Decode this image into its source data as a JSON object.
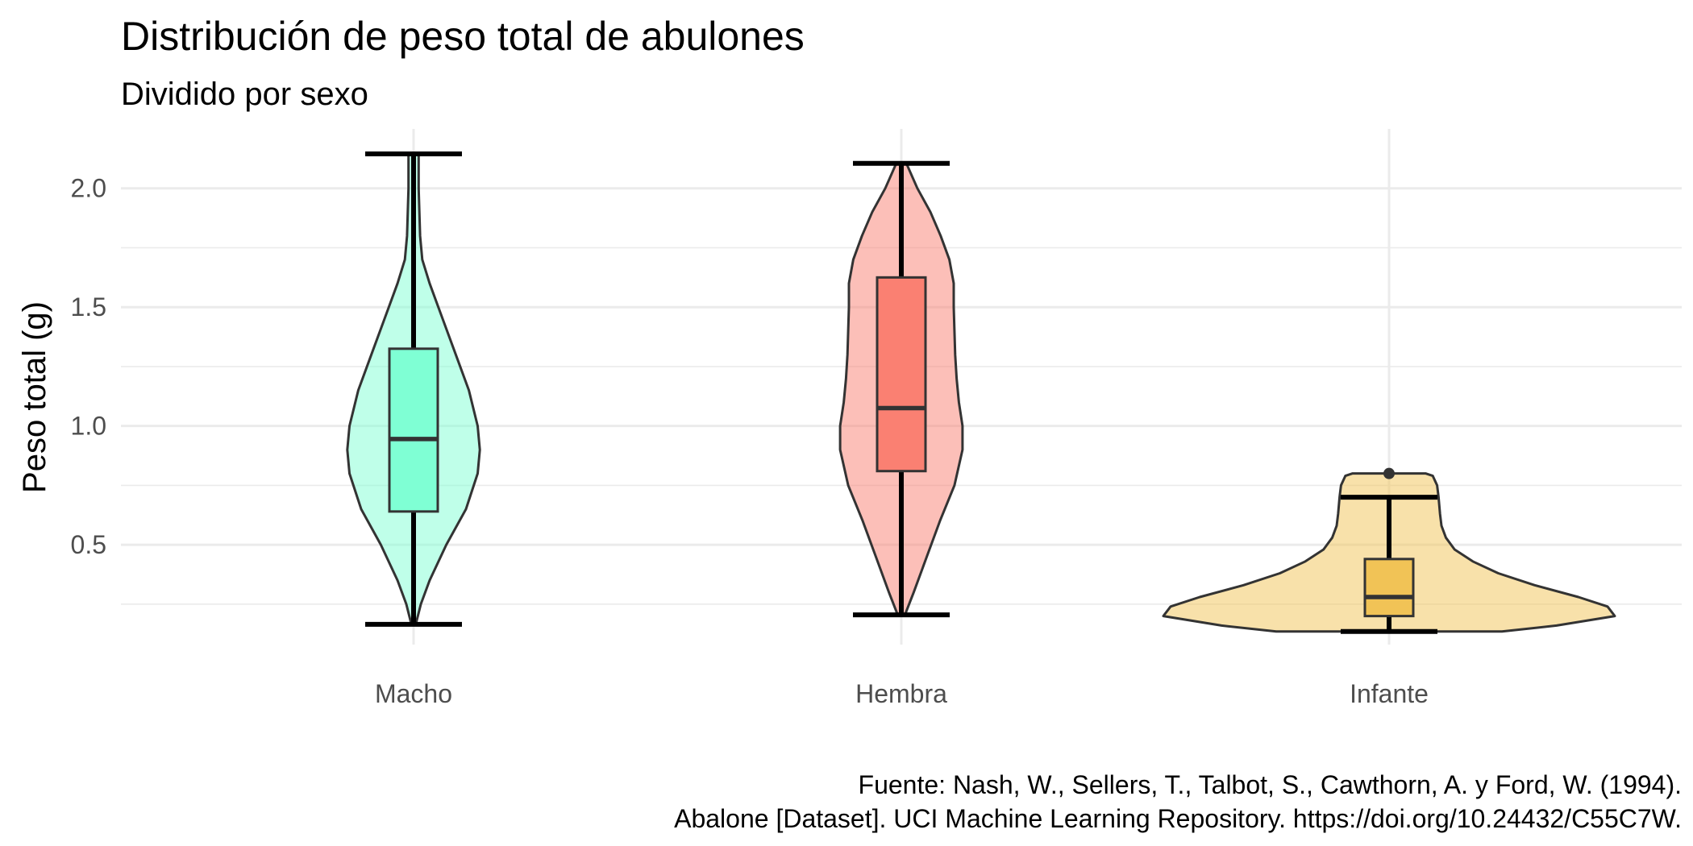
{
  "chart_data": {
    "type": "violin",
    "title": "Distribución de peso total de abulones",
    "subtitle": "Dividido por sexo",
    "xlabel": "",
    "ylabel": "Peso total (g)",
    "ylim": [
      0.08,
      2.25
    ],
    "yticks": [
      0.5,
      1.0,
      1.5,
      2.0
    ],
    "ytick_labels": [
      "0.5",
      "1.0",
      "1.5",
      "2.0"
    ],
    "grid": true,
    "categories": [
      "Macho",
      "Hembra",
      "Infante"
    ],
    "groups": [
      {
        "category": "Macho",
        "fill_violin": "#7fffd4",
        "fill_box": "#7fffd4",
        "min": 0.165,
        "q1": 0.64,
        "median": 0.945,
        "q3": 1.325,
        "max": 2.145,
        "outliers": [],
        "density": [
          [
            0.165,
            0.03
          ],
          [
            0.25,
            0.1
          ],
          [
            0.35,
            0.22
          ],
          [
            0.5,
            0.45
          ],
          [
            0.65,
            0.72
          ],
          [
            0.8,
            0.88
          ],
          [
            0.9,
            0.91
          ],
          [
            1.0,
            0.88
          ],
          [
            1.15,
            0.76
          ],
          [
            1.3,
            0.58
          ],
          [
            1.45,
            0.4
          ],
          [
            1.6,
            0.22
          ],
          [
            1.7,
            0.12
          ],
          [
            1.8,
            0.09
          ],
          [
            1.9,
            0.08
          ],
          [
            2.0,
            0.07
          ],
          [
            2.145,
            0.07
          ]
        ]
      },
      {
        "category": "Hembra",
        "fill_violin": "#fa8072",
        "fill_box": "#fa8072",
        "min": 0.205,
        "q1": 0.81,
        "median": 1.075,
        "q3": 1.625,
        "max": 2.105,
        "outliers": [],
        "density": [
          [
            0.205,
            0.05
          ],
          [
            0.3,
            0.17
          ],
          [
            0.45,
            0.35
          ],
          [
            0.6,
            0.53
          ],
          [
            0.75,
            0.73
          ],
          [
            0.9,
            0.84
          ],
          [
            1.0,
            0.84
          ],
          [
            1.1,
            0.79
          ],
          [
            1.2,
            0.76
          ],
          [
            1.3,
            0.74
          ],
          [
            1.4,
            0.73
          ],
          [
            1.5,
            0.72
          ],
          [
            1.6,
            0.72
          ],
          [
            1.7,
            0.66
          ],
          [
            1.8,
            0.54
          ],
          [
            1.9,
            0.4
          ],
          [
            2.0,
            0.22
          ],
          [
            2.105,
            0.07
          ]
        ]
      },
      {
        "category": "Infante",
        "fill_violin": "#f1c356",
        "fill_box": "#f1c356",
        "min": 0.135,
        "q1": 0.2,
        "median": 0.28,
        "q3": 0.44,
        "max": 0.7,
        "outliers": [
          0.8
        ],
        "density": [
          [
            0.135,
            1.55
          ],
          [
            0.16,
            2.3
          ],
          [
            0.2,
            3.1
          ],
          [
            0.24,
            3.0
          ],
          [
            0.28,
            2.6
          ],
          [
            0.33,
            2.0
          ],
          [
            0.38,
            1.5
          ],
          [
            0.43,
            1.15
          ],
          [
            0.48,
            0.9
          ],
          [
            0.53,
            0.78
          ],
          [
            0.58,
            0.72
          ],
          [
            0.63,
            0.7
          ],
          [
            0.7,
            0.68
          ],
          [
            0.75,
            0.66
          ],
          [
            0.79,
            0.6
          ],
          [
            0.8,
            0.5
          ]
        ]
      }
    ],
    "caption_lines": [
      "Fuente: Nash, W., Sellers, T., Talbot, S., Cawthorn, A. y Ford, W. (1994).",
      "Abalone [Dataset]. UCI Machine Learning Repository. https://doi.org/10.24432/C55C7W."
    ]
  }
}
